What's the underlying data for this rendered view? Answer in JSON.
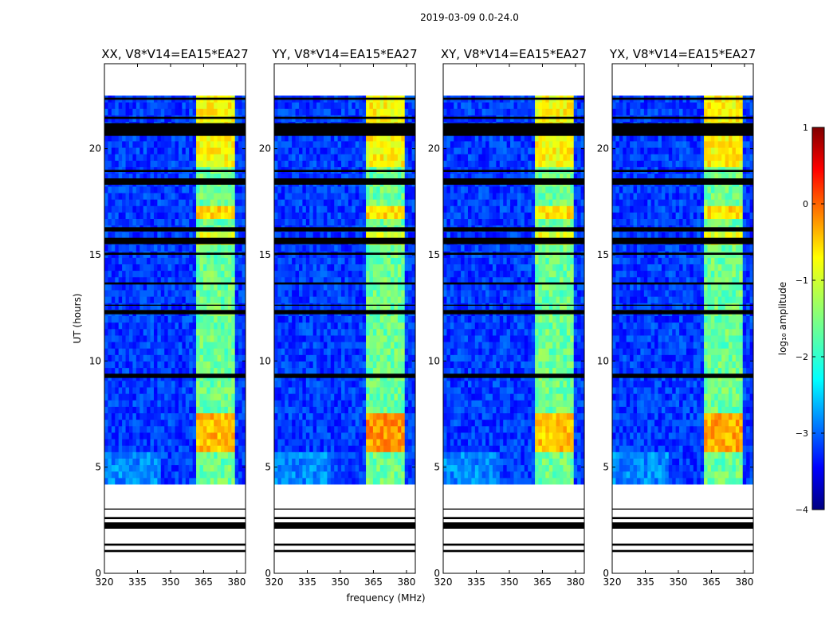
{
  "suptitle": "2019-03-09 0.0-24.0",
  "chart_data": {
    "type": "heatmap",
    "xlabel": "frequency (MHz)",
    "ylabel": "UT (hours)",
    "xlim": [
      320,
      384
    ],
    "ylim": [
      0,
      24
    ],
    "xticks": [
      320,
      335,
      350,
      365,
      380
    ],
    "yticks": [
      0,
      5,
      10,
      15,
      20
    ],
    "panels": [
      {
        "title": "XX, V8*V14=EA15*EA27",
        "strength": 0.85
      },
      {
        "title": "YY, V8*V14=EA15*EA27",
        "strength": 1.0
      },
      {
        "title": "XY, V8*V14=EA15*EA27",
        "strength": 0.8
      },
      {
        "title": "YX, V8*V14=EA15*EA27",
        "strength": 0.9
      }
    ],
    "data_time_range_hours": [
      4.2,
      22.5
    ],
    "band_columns_mhz": [
      {
        "start": 361,
        "end": 365
      },
      {
        "start": 365.5,
        "end": 369.5
      },
      {
        "start": 370,
        "end": 374
      },
      {
        "start": 374.5,
        "end": 379
      }
    ],
    "flagged_intervals_hours": [
      [
        1.0,
        1.1
      ],
      [
        1.3,
        1.4
      ],
      [
        2.1,
        2.4
      ],
      [
        2.55,
        2.65
      ],
      [
        3.0,
        3.05
      ],
      [
        9.2,
        9.4
      ],
      [
        12.2,
        12.4
      ],
      [
        12.6,
        12.65
      ],
      [
        13.6,
        13.7
      ],
      [
        15.0,
        15.1
      ],
      [
        15.5,
        15.8
      ],
      [
        16.1,
        16.3
      ],
      [
        18.3,
        18.6
      ],
      [
        18.9,
        19.0
      ],
      [
        20.6,
        21.2
      ],
      [
        21.4,
        21.5
      ],
      [
        22.3,
        22.4
      ]
    ],
    "colorbar": {
      "label": "log₁₀ amplitude",
      "range": [
        -4,
        1
      ],
      "ticks": [
        "1",
        "0",
        "−1",
        "−2",
        "−3",
        "−4"
      ],
      "colormap": "jet"
    }
  }
}
